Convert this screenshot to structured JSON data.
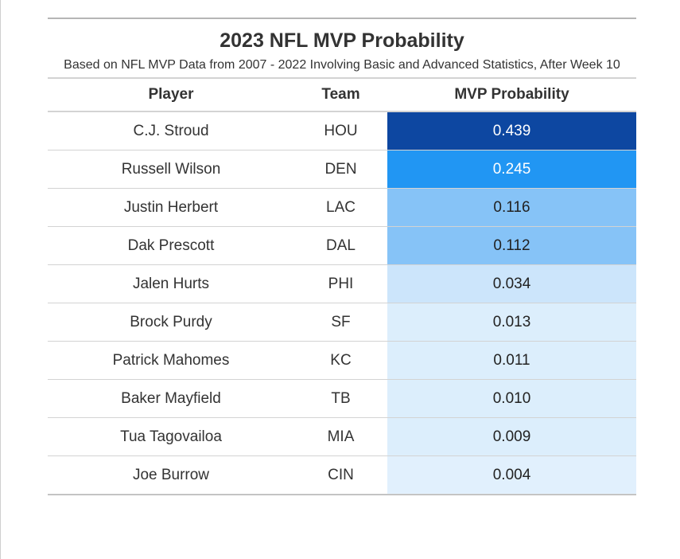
{
  "chart_data": {
    "type": "table",
    "title": "2023 NFL MVP Probability",
    "subtitle": "Based on NFL MVP Data from 2007 - 2022 Involving Basic and Advanced Statistics, After Week 10",
    "columns": [
      "Player",
      "Team",
      "MVP Probability"
    ],
    "rows": [
      {
        "player": "C.J. Stroud",
        "team": "HOU",
        "prob": "0.439",
        "color": "#0d47a1",
        "text_color": "#ffffff"
      },
      {
        "player": "Russell Wilson",
        "team": "DEN",
        "prob": "0.245",
        "color": "#2196f3",
        "text_color": "#ffffff"
      },
      {
        "player": "Justin Herbert",
        "team": "LAC",
        "prob": "0.116",
        "color": "#86c3f7",
        "text_color": "#222222"
      },
      {
        "player": "Dak Prescott",
        "team": "DAL",
        "prob": "0.112",
        "color": "#86c3f7",
        "text_color": "#222222"
      },
      {
        "player": "Jalen Hurts",
        "team": "PHI",
        "prob": "0.034",
        "color": "#cce5fb",
        "text_color": "#222222"
      },
      {
        "player": "Brock Purdy",
        "team": "SF",
        "prob": "0.013",
        "color": "#dceefc",
        "text_color": "#222222"
      },
      {
        "player": "Patrick Mahomes",
        "team": "KC",
        "prob": "0.011",
        "color": "#dceefc",
        "text_color": "#222222"
      },
      {
        "player": "Baker Mayfield",
        "team": "TB",
        "prob": "0.010",
        "color": "#dceefc",
        "text_color": "#222222"
      },
      {
        "player": "Tua Tagovailoa",
        "team": "MIA",
        "prob": "0.009",
        "color": "#dceefc",
        "text_color": "#222222"
      },
      {
        "player": "Joe Burrow",
        "team": "CIN",
        "prob": "0.004",
        "color": "#e1f0fd",
        "text_color": "#222222"
      }
    ]
  }
}
